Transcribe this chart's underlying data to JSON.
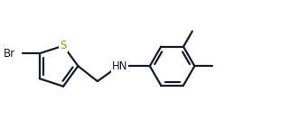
{
  "bg_color": "#ffffff",
  "line_color": "#1a1a2e",
  "S_color": "#b8860b",
  "Br_color": "#1a1a2e",
  "N_color": "#1a1a2e",
  "bond_lw": 1.6,
  "font_size": 8.5,
  "figsize": [
    3.31,
    1.43
  ],
  "dpi": 100,
  "xlim": [
    0.0,
    5.8
  ],
  "ylim": [
    -0.3,
    1.8
  ]
}
